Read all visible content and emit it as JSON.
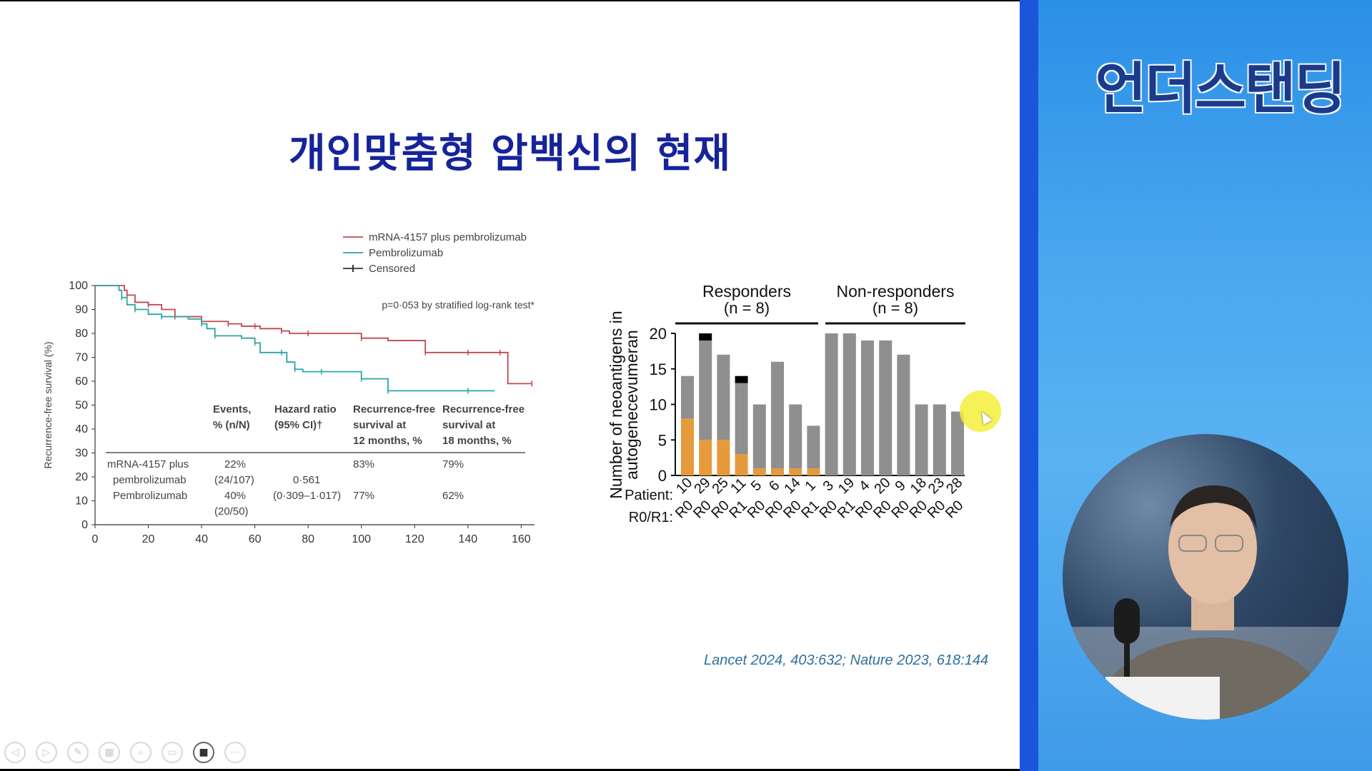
{
  "slide": {
    "title": "개인맞춤형 암백신의 현재",
    "citation": "Lancet 2024, 403:632; Nature 2023, 618:144"
  },
  "channel": {
    "name": "언더스탠딩"
  },
  "toolbar": {
    "buttons": [
      {
        "icon": "previous-icon",
        "glyph": "◁"
      },
      {
        "icon": "next-icon",
        "glyph": "▷"
      },
      {
        "icon": "pen-icon",
        "glyph": "✎"
      },
      {
        "icon": "slides-icon",
        "glyph": "▦"
      },
      {
        "icon": "zoom-icon",
        "glyph": "⌕"
      },
      {
        "icon": "subtitles-icon",
        "glyph": "▭"
      },
      {
        "icon": "camera-icon",
        "glyph": "■"
      },
      {
        "icon": "more-icon",
        "glyph": "⋯"
      }
    ]
  },
  "chart_data": [
    {
      "type": "line",
      "title": "",
      "ylabel": "Recurrence-free survival (%)",
      "xlabel": "",
      "xlim": [
        0,
        165
      ],
      "ylim": [
        0,
        100
      ],
      "xticks": [
        0,
        20,
        40,
        60,
        80,
        100,
        120,
        140,
        160
      ],
      "yticks": [
        0,
        10,
        20,
        30,
        40,
        50,
        60,
        70,
        80,
        90,
        100
      ],
      "annotation": "p=0·053 by stratified log-rank test*",
      "legend": [
        "mRNA-4157 plus pembrolizumab",
        "Pembrolizumab",
        "Censored"
      ],
      "legend_position": "top-right",
      "series": [
        {
          "name": "mRNA-4157 plus pembrolizumab",
          "color": "#c0474f",
          "x": [
            0,
            11,
            12,
            15,
            20,
            25,
            30,
            40,
            50,
            55,
            60,
            62,
            70,
            73,
            80,
            90,
            100,
            110,
            124,
            130,
            140,
            145,
            152,
            155,
            164
          ],
          "y": [
            100,
            98,
            96,
            93,
            92,
            90,
            87,
            85,
            84,
            83,
            83,
            82,
            81,
            80,
            80,
            80,
            78,
            77,
            72,
            72,
            72,
            72,
            72,
            59,
            59
          ]
        },
        {
          "name": "Pembrolizumab",
          "color": "#2aa5a5",
          "x": [
            0,
            9,
            10,
            12,
            15,
            20,
            25,
            35,
            40,
            42,
            45,
            55,
            60,
            62,
            70,
            72,
            75,
            78,
            85,
            90,
            100,
            105,
            110,
            120,
            140,
            150
          ],
          "y": [
            100,
            98,
            95,
            92,
            90,
            88,
            87,
            86,
            84,
            82,
            79,
            78,
            76,
            72,
            72,
            68,
            65,
            64,
            64,
            64,
            61,
            61,
            56,
            56,
            56,
            56
          ]
        }
      ],
      "table": {
        "headers": [
          "Events,\n% (n/N)",
          "Hazard ratio\n(95% CI)†",
          "Recurrence-free\nsurvival at\n12 months, %",
          "Recurrence-free\nsurvival at\n18 months, %"
        ],
        "rows": [
          {
            "label": "mRNA-4157 plus\npembrolizumab",
            "events": "22%\n(24/107)",
            "hr": "0·561\n(0·309–1·017)",
            "rfs12": "83%",
            "rfs18": "79%"
          },
          {
            "label": "Pembrolizumab",
            "events": "40%\n(20/50)",
            "hr": "",
            "rfs12": "77%",
            "rfs18": "62%"
          }
        ]
      }
    },
    {
      "type": "bar",
      "title": "",
      "ylabel": "Number of neoantigens in autogenecevumeran",
      "ylim": [
        0,
        20
      ],
      "yticks": [
        0,
        5,
        10,
        15,
        20
      ],
      "row_labels": [
        "Patient:",
        "R0/R1:"
      ],
      "groups": [
        {
          "label": "Responders",
          "n_label": "(n = 8)"
        },
        {
          "label": "Non-responders",
          "n_label": "(n = 8)"
        }
      ],
      "categories": [
        "10",
        "29",
        "25",
        "11",
        "5",
        "6",
        "14",
        "1",
        "3",
        "19",
        "4",
        "20",
        "9",
        "18",
        "23",
        "28"
      ],
      "r0r1": [
        "R0",
        "R0",
        "R0",
        "R1",
        "R0",
        "R0",
        "R0",
        "R1",
        "R0",
        "R1",
        "R0",
        "R0",
        "R0",
        "R0",
        "R0",
        "R0"
      ],
      "series": [
        {
          "color": "#e59a3c",
          "values": [
            8,
            5,
            5,
            3,
            1,
            1,
            1,
            1,
            0,
            0,
            0,
            0,
            0,
            0,
            0,
            0
          ]
        },
        {
          "color": "#8f8f8f",
          "values": [
            6,
            14,
            12,
            10,
            9,
            15,
            9,
            6,
            20,
            20,
            19,
            19,
            17,
            10,
            10,
            9
          ]
        },
        {
          "color": "#000000",
          "values": [
            0,
            1,
            0,
            1,
            0,
            0,
            0,
            0,
            0,
            0,
            0,
            0,
            0,
            0,
            0,
            0
          ]
        }
      ]
    }
  ]
}
